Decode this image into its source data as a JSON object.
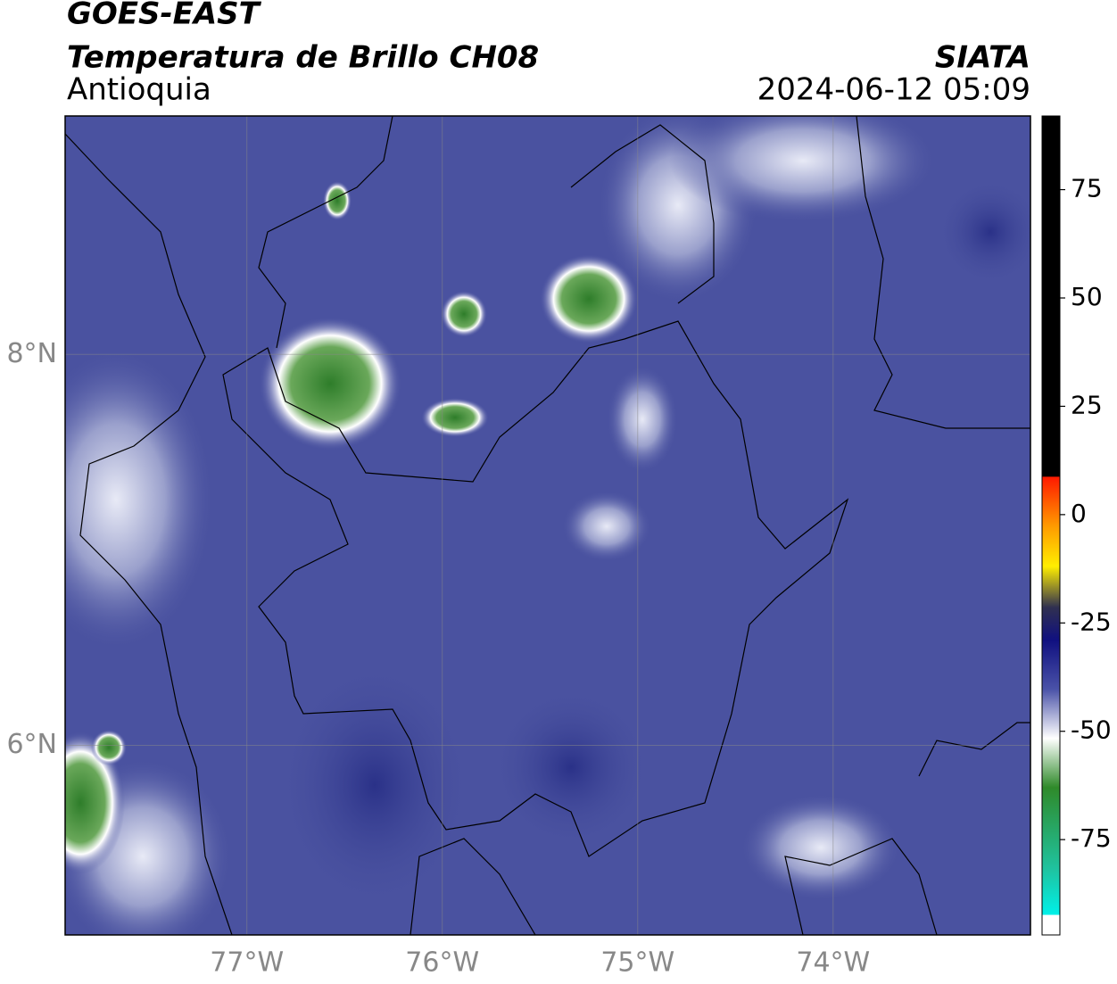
{
  "header": {
    "title": "GOES-EAST",
    "subtitle": "Temperatura de Brillo CH08",
    "region": "Antioquia",
    "source": "SIATA",
    "datetime": "2024-06-12 05:09"
  },
  "map": {
    "xlim": [
      -77.93,
      -72.99
    ],
    "ylim": [
      5.03,
      9.22
    ],
    "xticks": [
      {
        "value": -77,
        "label": "77°W"
      },
      {
        "value": -76,
        "label": "76°W"
      },
      {
        "value": -75,
        "label": "75°W"
      },
      {
        "value": -74,
        "label": "74°W"
      }
    ],
    "yticks": [
      {
        "value": 8,
        "label": "8°N"
      },
      {
        "value": 6,
        "label": "6°N"
      }
    ],
    "grid": true
  },
  "colorbar": {
    "lim": [
      -97,
      92
    ],
    "ticks": [
      75,
      50,
      25,
      0,
      -25,
      -50,
      -75
    ]
  }
}
